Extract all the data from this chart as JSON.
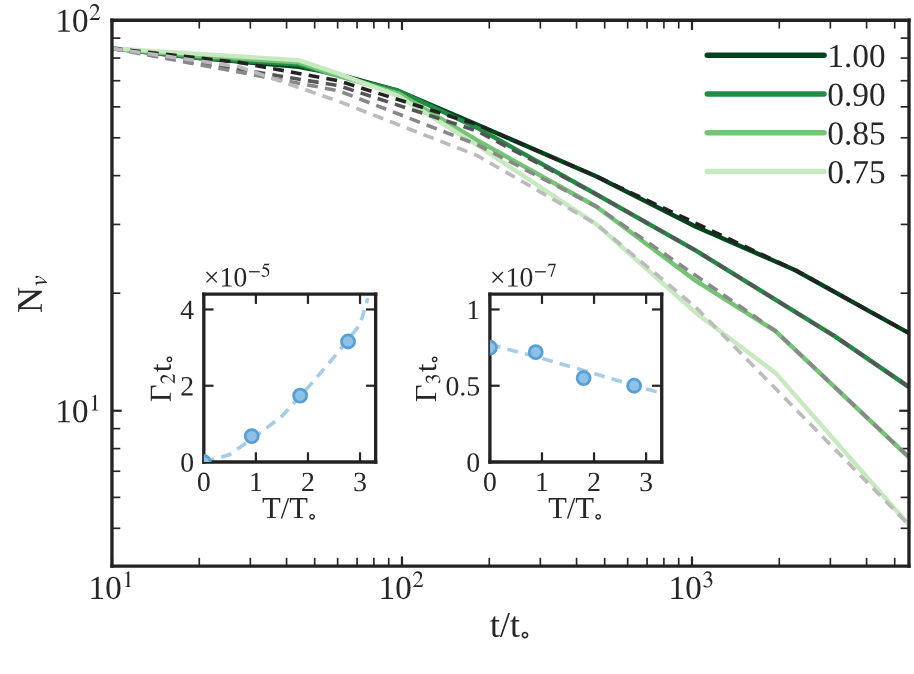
{
  "chart_data": [
    {
      "type": "line",
      "xlabel": "t/t$_{∘}$",
      "ylabel": "N$_{v}$",
      "log": "xy",
      "xlim": [
        10,
        5600
      ],
      "ylim": [
        4,
        100
      ],
      "xticks": [
        {
          "value": 10,
          "label": "10$^{1}$"
        },
        {
          "value": 100,
          "label": "10$^{2}$"
        },
        {
          "value": 1000,
          "label": "10$^{3}$"
        }
      ],
      "yticks": [
        {
          "value": 10,
          "label": "10$^{1}$"
        },
        {
          "value": 100,
          "label": "10$^{2}$"
        }
      ],
      "legend": "top right",
      "grid": false,
      "series": [
        {
          "name": "1.00",
          "color": "#00441b",
          "x": [
            10,
            20,
            44,
            60.4,
            96.9,
            182,
            469,
            1032,
            2272,
            5600
          ],
          "values": [
            84.7,
            80,
            76,
            72.7,
            66,
            54,
            39.8,
            29.6,
            22.9,
            15.8
          ]
        },
        {
          "name": "0.90",
          "color": "#238b45",
          "x": [
            10,
            20,
            44,
            60.4,
            96.9,
            182,
            469,
            1032,
            3112,
            5600
          ],
          "values": [
            84.7,
            80,
            77,
            72,
            66,
            53,
            35.8,
            25.7,
            15.5,
            11.5
          ]
        },
        {
          "name": "0.85",
          "color": "#74c476",
          "x": [
            10,
            20,
            44,
            60.4,
            96.9,
            182,
            469,
            1032,
            1941,
            5600
          ],
          "values": [
            84.7,
            81,
            78,
            72,
            65,
            49.2,
            33.3,
            21.5,
            16.0,
            7.6
          ]
        },
        {
          "name": "0.75",
          "color": "#c7e9c0",
          "x": [
            10,
            20,
            44,
            60.4,
            96.9,
            182,
            469,
            1032,
            1941,
            5600
          ],
          "values": [
            84.7,
            82,
            79,
            73,
            64,
            47.8,
            30,
            17.8,
            12.5,
            5.1
          ]
        },
        {
          "color": "#222222",
          "line_style": "dashed",
          "x": [
            10,
            27.4,
            60.4,
            182,
            469,
            2272,
            5600
          ],
          "values": [
            84.7,
            78,
            70,
            54,
            39.8,
            22.9,
            15.8
          ]
        },
        {
          "color": "#555555",
          "line_style": "dashed",
          "x": [
            10,
            60.4,
            182,
            469,
            1032,
            3112,
            5600
          ],
          "values": [
            84.7,
            68,
            52,
            35.8,
            25.7,
            15.5,
            11.5
          ]
        },
        {
          "color": "#888888",
          "line_style": "dashed",
          "x": [
            10,
            60.4,
            182,
            469,
            1941,
            5600
          ],
          "values": [
            84.7,
            66,
            48,
            33.3,
            16.0,
            7.6
          ]
        },
        {
          "color": "#bbbbbb",
          "line_style": "dashed",
          "x": [
            10,
            27.4,
            60.4,
            182,
            469,
            1032,
            5600
          ],
          "values": [
            84.7,
            76,
            62,
            45,
            30,
            18.4,
            5.1
          ]
        }
      ]
    },
    {
      "type": "scatter",
      "xlabel": "T/T$_{∘}$",
      "ylabel": "Γ$_{2}$t$_{∘}$",
      "annotations": [
        "×10$^{−5}$"
      ],
      "xlim": [
        0,
        3.3
      ],
      "ylim": [
        0,
        4.4
      ],
      "xticks": [
        0,
        1,
        2,
        3
      ],
      "yticks": [
        0,
        2,
        4
      ],
      "series": [
        {
          "color": "#8ec1e8",
          "marker": "circle",
          "x": [
            0,
            0.92,
            1.85,
            2.77
          ],
          "values": [
            0,
            0.68,
            1.74,
            3.16
          ]
        },
        {
          "type": "line",
          "color": "#a6cde8",
          "line_style": "dashed",
          "x": [
            0,
            0.5,
            1,
            1.5,
            2,
            2.5,
            3,
            3.15
          ],
          "values": [
            0,
            0.2,
            0.68,
            1.2,
            1.95,
            2.75,
            3.6,
            4.3
          ]
        }
      ]
    },
    {
      "type": "scatter",
      "xlabel": "T/T$_{∘}$",
      "ylabel": "Γ$_{3}$t$_{∘}$",
      "annotations": [
        "×10$^{−7}$"
      ],
      "xlim": [
        0,
        3.3
      ],
      "ylim": [
        0,
        1.1
      ],
      "xticks": [
        0,
        1,
        2,
        3
      ],
      "yticks": [
        0,
        0.5,
        1
      ],
      "series": [
        {
          "color": "#8ec1e8",
          "marker": "circle",
          "x": [
            0,
            0.88,
            1.8,
            2.77
          ],
          "values": [
            0.75,
            0.72,
            0.55,
            0.5
          ]
        },
        {
          "type": "line",
          "color": "#a6cde8",
          "line_style": "dashed",
          "x": [
            0,
            1,
            2,
            3.3
          ],
          "values": [
            0.77,
            0.68,
            0.58,
            0.45
          ]
        }
      ]
    }
  ]
}
